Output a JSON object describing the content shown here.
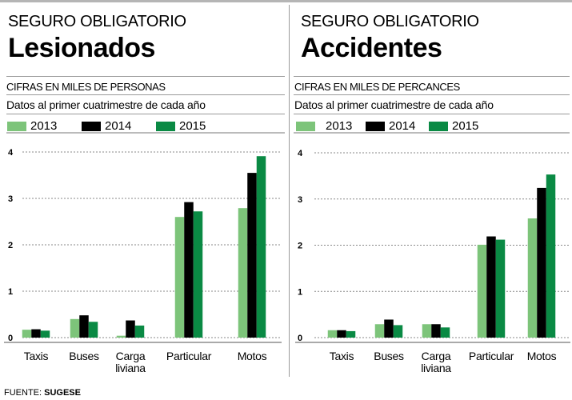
{
  "legend": [
    {
      "label": "2013",
      "color": "#7dc47a"
    },
    {
      "label": "2014",
      "color": "#000000"
    },
    {
      "label": "2015",
      "color": "#0a8a44"
    }
  ],
  "footer": {
    "prefix": "FUENTE:",
    "source": "SUGESE"
  },
  "chart_data": [
    {
      "type": "bar",
      "kicker": "SEGURO OBLIGATORIO",
      "title": "Lesionados",
      "subtitle": "CIFRAS EN MILES DE PERSONAS",
      "note": "Datos al primer cuatrimestre de cada año",
      "categories": [
        [
          "Taxis"
        ],
        [
          "Buses"
        ],
        [
          "Carga",
          "liviana"
        ],
        [
          "Particular"
        ],
        [
          "Motos"
        ]
      ],
      "series": [
        {
          "name": "2013",
          "values": [
            0.17,
            0.4,
            0.04,
            2.6,
            2.79
          ]
        },
        {
          "name": "2014",
          "values": [
            0.18,
            0.48,
            0.37,
            2.92,
            3.55
          ]
        },
        {
          "name": "2015",
          "values": [
            0.15,
            0.34,
            0.26,
            2.72,
            3.91
          ]
        }
      ],
      "yticks": [
        "0",
        "1",
        "2",
        "3",
        "4"
      ],
      "ylim": [
        0,
        4
      ],
      "grid": true,
      "legend": "top-left"
    },
    {
      "type": "bar",
      "kicker": "SEGURO OBLIGATORIO",
      "title": "Accidentes",
      "subtitle": "CIFRAS EN MILES DE PERCANCES",
      "note": "Datos al primer cuatrimestre de cada año",
      "categories": [
        [
          "Taxis"
        ],
        [
          "Buses"
        ],
        [
          "Carga",
          "liviana"
        ],
        [
          "Particular"
        ],
        [
          "Motos"
        ]
      ],
      "series": [
        {
          "name": "2013",
          "values": [
            0.16,
            0.29,
            0.29,
            2.01,
            2.58
          ]
        },
        {
          "name": "2014",
          "values": [
            0.16,
            0.39,
            0.29,
            2.19,
            3.24
          ]
        },
        {
          "name": "2015",
          "values": [
            0.14,
            0.27,
            0.22,
            2.12,
            3.53
          ]
        }
      ],
      "yticks": [
        "0",
        "1",
        "2",
        "3",
        "4"
      ],
      "ylim": [
        0,
        4
      ],
      "grid": true,
      "legend": "top-left"
    }
  ]
}
